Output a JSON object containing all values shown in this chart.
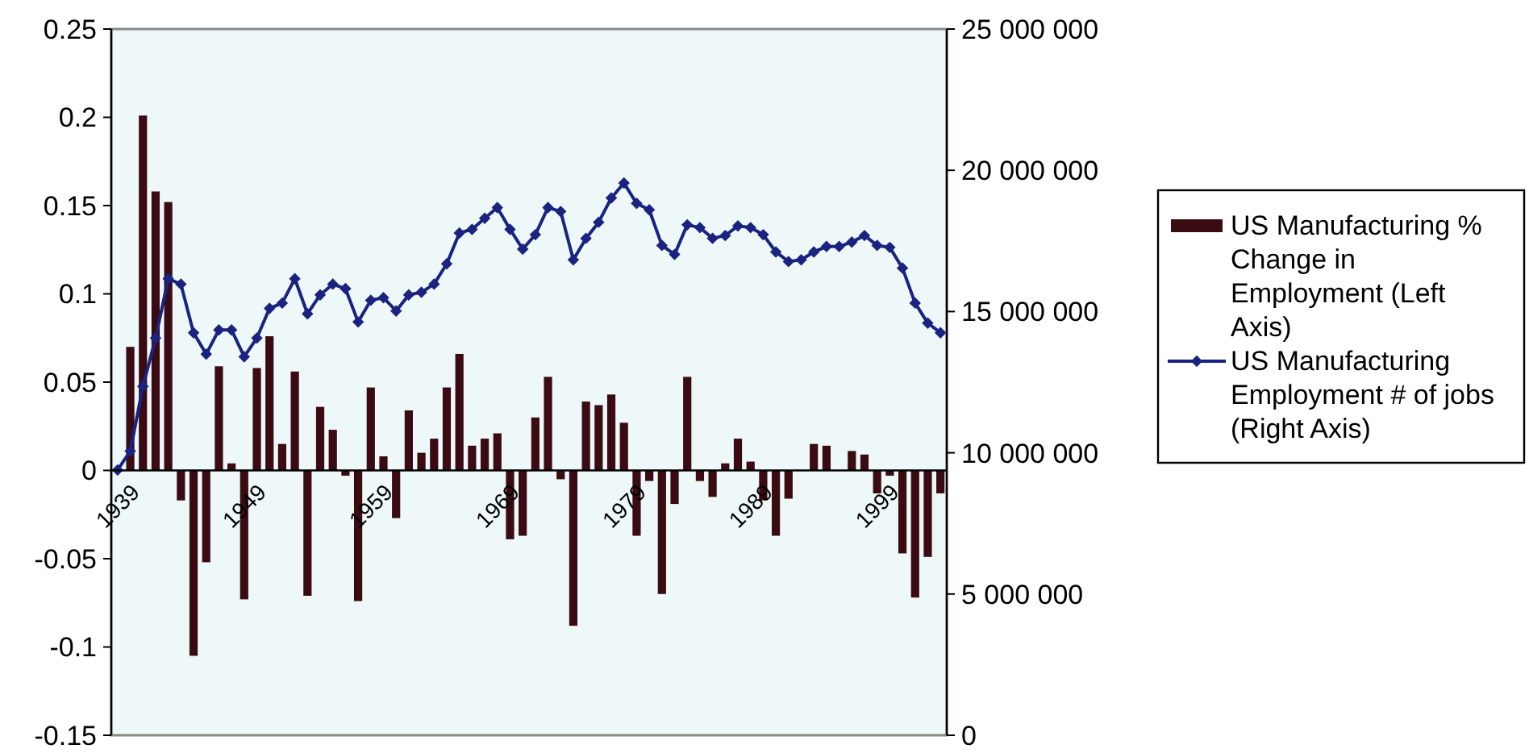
{
  "chart_data": {
    "type": "bar",
    "categories": [
      "1939",
      null,
      null,
      null,
      null,
      null,
      null,
      null,
      null,
      null,
      "1949",
      null,
      null,
      null,
      null,
      null,
      null,
      null,
      null,
      null,
      "1959",
      null,
      null,
      null,
      null,
      null,
      null,
      null,
      null,
      null,
      "1969",
      null,
      null,
      null,
      null,
      null,
      null,
      null,
      null,
      null,
      "1979",
      null,
      null,
      null,
      null,
      null,
      null,
      null,
      null,
      null,
      "1989",
      null,
      null,
      null,
      null,
      null,
      null,
      null,
      null,
      null,
      "1999",
      null,
      null,
      null,
      null,
      null
    ],
    "series": [
      {
        "name": "US Manufacturing % Change in Employment (Left Axis)",
        "color": "#3b0b14",
        "values": [
          null,
          0.07,
          0.201,
          0.158,
          0.152,
          -0.017,
          -0.105,
          -0.052,
          0.059,
          0.004,
          -0.073,
          0.058,
          0.076,
          0.015,
          0.056,
          -0.071,
          0.036,
          0.023,
          -0.003,
          -0.074,
          0.047,
          0.008,
          -0.027,
          0.034,
          0.01,
          0.018,
          0.047,
          0.066,
          0.014,
          0.018,
          0.021,
          -0.039,
          -0.037,
          0.03,
          0.053,
          -0.005,
          -0.088,
          0.039,
          0.037,
          0.043,
          0.027,
          -0.037,
          -0.006,
          -0.07,
          -0.019,
          0.053,
          -0.006,
          -0.015,
          0.004,
          0.018,
          0.005,
          -0.017,
          -0.037,
          -0.016,
          null,
          0.015,
          0.014,
          0,
          0.011,
          0.009,
          -0.013,
          -0.003,
          -0.047,
          -0.072,
          -0.049,
          -0.013
        ]
      },
      {
        "name": "US Manufacturing Employment # of jobs (Right Axis)",
        "type": "line",
        "axis": "y2",
        "marker": "diamond",
        "color": "#1a2380",
        "values": [
          9390000,
          10060000,
          12350000,
          14060000,
          16160000,
          15970000,
          14250000,
          13490000,
          14350000,
          14350000,
          13400000,
          14060000,
          15110000,
          15300000,
          16160000,
          14920000,
          15590000,
          15970000,
          15810000,
          14630000,
          15400000,
          15490000,
          15020000,
          15590000,
          15680000,
          15970000,
          16690000,
          17780000,
          17910000,
          18300000,
          18680000,
          17910000,
          17210000,
          17720000,
          18680000,
          18540000,
          16830000,
          17590000,
          18160000,
          19020000,
          19550000,
          18830000,
          18600000,
          17340000,
          17020000,
          18070000,
          17970000,
          17590000,
          17690000,
          18030000,
          17970000,
          17720000,
          17110000,
          16770000,
          16830000,
          17110000,
          17300000,
          17300000,
          17460000,
          17690000,
          17340000,
          17270000,
          16540000,
          15300000,
          14590000,
          14250000
        ]
      }
    ],
    "ylim": [
      -0.15,
      0.25
    ],
    "yticks": [
      -0.15,
      -0.1,
      -0.05,
      0,
      0.05,
      0.1,
      0.15,
      0.2,
      0.25
    ],
    "y2lim": [
      0,
      25000000
    ],
    "y2ticks": [
      {
        "value": 0,
        "label": "0"
      },
      {
        "value": 5000000,
        "label": "5 000 000"
      },
      {
        "value": 10000000,
        "label": "10 000 000"
      },
      {
        "value": 15000000,
        "label": "15 000 000"
      },
      {
        "value": 20000000,
        "label": "20 000 000"
      },
      {
        "value": 25000000,
        "label": "25 000 000"
      }
    ],
    "legend": "right",
    "grid": false
  }
}
